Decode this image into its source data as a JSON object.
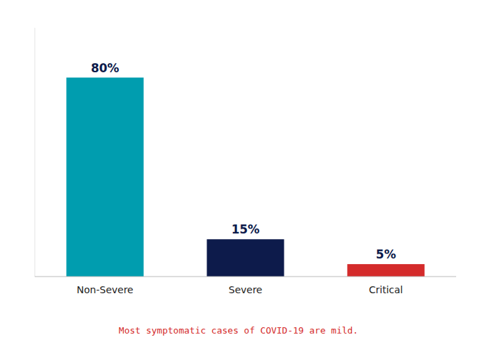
{
  "chart_data": {
    "type": "bar",
    "categories": [
      "Non-Severe",
      "Severe",
      "Critical"
    ],
    "values": [
      80,
      15,
      5
    ],
    "value_labels": [
      "80%",
      "15%",
      "5%"
    ],
    "colors": [
      "#009DAF",
      "#0D1B4B",
      "#D42B2B"
    ],
    "ylim": [
      0,
      100
    ],
    "grid": false,
    "data_labels": true,
    "tick_labels": "x",
    "annotations": [
      "Most symptomatic cases of COVID-19 are mild."
    ]
  }
}
